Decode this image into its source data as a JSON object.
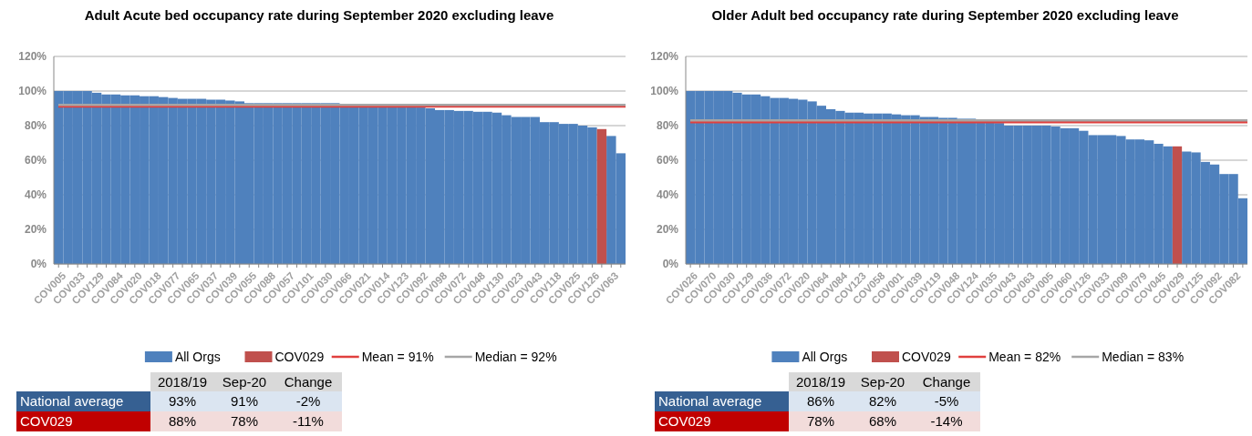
{
  "chart_data": [
    {
      "type": "bar",
      "title": "Adult Acute bed occupancy rate during September 2020 excluding leave",
      "legend": "bottom",
      "grid": "y",
      "categories": [
        "COV005",
        null,
        "COV033",
        null,
        "COV129",
        null,
        "COV084",
        null,
        "COV020",
        null,
        "COV018",
        null,
        "COV077",
        null,
        "COV065",
        null,
        "COV037",
        null,
        "COV039",
        null,
        "COV055",
        null,
        "COV088",
        null,
        "COV057",
        null,
        "COV101",
        null,
        "COV030",
        null,
        "COV066",
        null,
        "COV021",
        null,
        "COV014",
        null,
        "COV123",
        null,
        "COV092",
        null,
        "COV098",
        null,
        "COV072",
        null,
        "COV048",
        null,
        "COV130",
        null,
        "COV023",
        null,
        "COV043",
        null,
        "COV118",
        null,
        "COV025",
        null,
        "COV126",
        null,
        "COV063",
        null
      ],
      "ylim": [
        0,
        120
      ],
      "yticks": [
        {
          "value": 0,
          "label": "0%"
        },
        {
          "value": 20,
          "label": "20%"
        },
        {
          "value": 40,
          "label": "40%"
        },
        {
          "value": 60,
          "label": "60%"
        },
        {
          "value": 80,
          "label": "80%"
        },
        {
          "value": 100,
          "label": "100%"
        },
        {
          "value": 120,
          "label": "120%"
        }
      ],
      "series": [
        {
          "name": "All Orgs",
          "color": "#4f81bd",
          "values": [
            100,
            100,
            100,
            100,
            99,
            98,
            98,
            97.5,
            97.5,
            97,
            97,
            96.5,
            96,
            95.5,
            95.5,
            95.5,
            95,
            95,
            94.5,
            94,
            93,
            93,
            93,
            93,
            93,
            93,
            93,
            93,
            93,
            93,
            92,
            92,
            92,
            91.5,
            91.5,
            91,
            91,
            91,
            90.5,
            90,
            89,
            89,
            88.5,
            88.5,
            88,
            88,
            87.5,
            86,
            85,
            85,
            85,
            82,
            82,
            81,
            81,
            80,
            79,
            null,
            74,
            64
          ]
        },
        {
          "name": "COV029",
          "color": "#c0504d",
          "values": [
            null,
            null,
            null,
            null,
            null,
            null,
            null,
            null,
            null,
            null,
            null,
            null,
            null,
            null,
            null,
            null,
            null,
            null,
            null,
            null,
            null,
            null,
            null,
            null,
            null,
            null,
            null,
            null,
            null,
            null,
            null,
            null,
            null,
            null,
            null,
            null,
            null,
            null,
            null,
            null,
            null,
            null,
            null,
            null,
            null,
            null,
            null,
            null,
            null,
            null,
            null,
            null,
            null,
            null,
            null,
            null,
            null,
            78,
            null,
            null
          ]
        }
      ],
      "ref_lines": [
        {
          "axis": "y",
          "value": 91,
          "label": "Mean = 91%",
          "color": "#e0403e"
        },
        {
          "axis": "y",
          "value": 92,
          "label": "Median = 92%",
          "color": "#a6a6a6"
        }
      ],
      "annotations": [
        "2018/19",
        "Sep-20",
        "Change",
        "National average",
        "93%",
        "91%",
        "-2%",
        "COV029",
        "88%",
        "78%",
        "-11%"
      ]
    },
    {
      "type": "bar",
      "title": "Older Adult bed occupancy rate during September 2020 excluding leave",
      "legend": "bottom",
      "grid": "y",
      "categories": [
        "COV026",
        null,
        "COV070",
        null,
        "COV030",
        null,
        "COV129",
        null,
        "COV036",
        null,
        "COV072",
        null,
        "COV020",
        null,
        "COV064",
        null,
        "COV084",
        null,
        "COV123",
        null,
        "COV058",
        null,
        "COV001",
        null,
        "COV039",
        null,
        "COV119",
        null,
        "COV048",
        null,
        "COV124",
        null,
        "COV035",
        null,
        "COV043",
        null,
        "COV063",
        null,
        "COV005",
        null,
        "COV060",
        null,
        "COV126",
        null,
        "COV033",
        null,
        "COV009",
        null,
        "COV079",
        null,
        "COV045",
        null,
        "COV029",
        null,
        "COV125",
        null,
        "COV092",
        null,
        "COV082",
        null
      ],
      "ylim": [
        0,
        120
      ],
      "yticks": [
        {
          "value": 0,
          "label": "0%"
        },
        {
          "value": 20,
          "label": "20%"
        },
        {
          "value": 40,
          "label": "40%"
        },
        {
          "value": 60,
          "label": "60%"
        },
        {
          "value": 80,
          "label": "80%"
        },
        {
          "value": 100,
          "label": "100%"
        },
        {
          "value": 120,
          "label": "120%"
        }
      ],
      "series": [
        {
          "name": "All Orgs",
          "color": "#4f81bd",
          "values": [
            100,
            100,
            100,
            100,
            100,
            99,
            98,
            98,
            97,
            96,
            96,
            95.5,
            95,
            94,
            91.5,
            89.5,
            88.5,
            87.5,
            87.5,
            87,
            87,
            87,
            86.5,
            86,
            86,
            85,
            85,
            84.5,
            84.5,
            84,
            84,
            82.5,
            82,
            81.5,
            80,
            80,
            80,
            80,
            80,
            79.5,
            78.5,
            78.5,
            77,
            74.5,
            74.5,
            74.5,
            74,
            72,
            72,
            71.5,
            69.5,
            68,
            null,
            65,
            64.5,
            59,
            57.5,
            52,
            52,
            38
          ]
        },
        {
          "name": "COV029",
          "color": "#c0504d",
          "values": [
            null,
            null,
            null,
            null,
            null,
            null,
            null,
            null,
            null,
            null,
            null,
            null,
            null,
            null,
            null,
            null,
            null,
            null,
            null,
            null,
            null,
            null,
            null,
            null,
            null,
            null,
            null,
            null,
            null,
            null,
            null,
            null,
            null,
            null,
            null,
            null,
            null,
            null,
            null,
            null,
            null,
            null,
            null,
            null,
            null,
            null,
            null,
            null,
            null,
            null,
            null,
            null,
            68,
            null,
            null,
            null,
            null,
            null,
            null,
            null
          ]
        }
      ],
      "ref_lines": [
        {
          "axis": "y",
          "value": 82,
          "label": "Mean = 82%",
          "color": "#e0403e"
        },
        {
          "axis": "y",
          "value": 83,
          "label": "Median = 83%",
          "color": "#a6a6a6"
        }
      ],
      "annotations": [
        "2018/19",
        "Sep-20",
        "Change",
        "National average",
        "86%",
        "82%",
        "-5%",
        "COV029",
        "78%",
        "68%",
        "-14%"
      ]
    }
  ]
}
